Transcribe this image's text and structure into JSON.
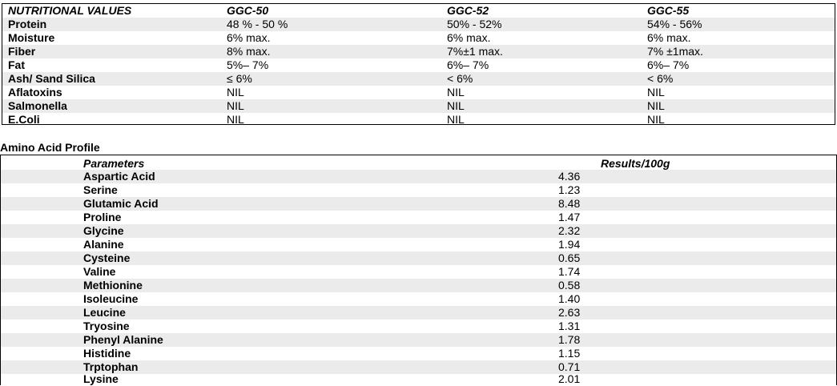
{
  "nutrition": {
    "headers": [
      "NUTRITIONAL VALUES",
      "GGC-50",
      "GGC-52",
      "GGC-55"
    ],
    "rows": [
      [
        "Protein",
        "48 % - 50 %",
        "50% - 52%",
        "54% - 56%"
      ],
      [
        "Moisture",
        "6% max.",
        "6% max.",
        "6% max."
      ],
      [
        "Fiber",
        "8% max.",
        "7%±1 max.",
        "7% ±1max."
      ],
      [
        "Fat",
        "5%– 7%",
        "6%– 7%",
        "6%– 7%"
      ],
      [
        "Ash/ Sand Silica",
        "≤ 6%",
        "< 6%",
        "< 6%"
      ],
      [
        "Aflatoxins",
        "NIL",
        "NIL",
        "NIL"
      ],
      [
        "Salmonella",
        "NIL",
        "NIL",
        "NIL"
      ],
      [
        "E.Coli",
        "NIL",
        "NIL",
        "NIL"
      ]
    ]
  },
  "amino": {
    "title": "Amino Acid Profile",
    "headers": [
      "Parameters",
      "Results/100g"
    ],
    "rows": [
      [
        "Aspartic Acid",
        "4.36"
      ],
      [
        "Serine",
        "1.23"
      ],
      [
        "Glutamic Acid",
        "8.48"
      ],
      [
        "Proline",
        "1.47"
      ],
      [
        "Glycine",
        "2.32"
      ],
      [
        "Alanine",
        "1.94"
      ],
      [
        "Cysteine",
        "0.65"
      ],
      [
        "Valine",
        "1.74"
      ],
      [
        "Methionine",
        "0.58"
      ],
      [
        "Isoleucine",
        "1.40"
      ],
      [
        "Leucine",
        "2.63"
      ],
      [
        "Tryosine",
        "1.31"
      ],
      [
        "Phenyl Alanine",
        "1.78"
      ],
      [
        "Histidine",
        "1.15"
      ],
      [
        "Trptophan",
        "0.71"
      ],
      [
        "Lysine",
        "2.01"
      ]
    ]
  }
}
